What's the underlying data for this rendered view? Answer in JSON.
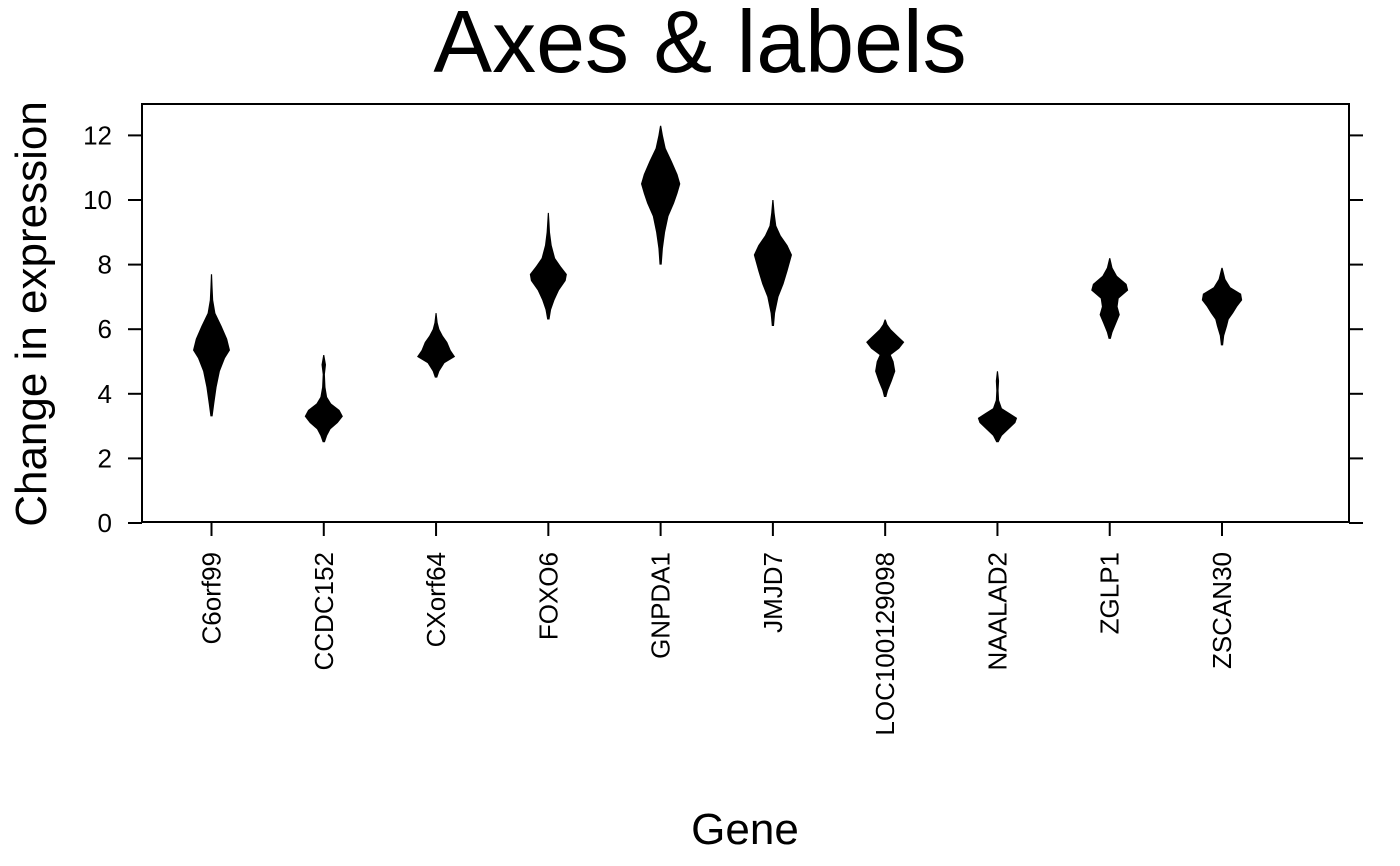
{
  "chart_data": {
    "type": "violin",
    "title": "Axes & labels",
    "xlabel": "Gene",
    "ylabel": "Change in expression",
    "ylim": [
      0,
      13
    ],
    "yticks": [
      0,
      2,
      4,
      6,
      8,
      10,
      12
    ],
    "y_tick_labels": [
      "0",
      "2",
      "4",
      "6",
      "8",
      "10",
      "12"
    ],
    "categories": [
      "C6orf99",
      "CCDC152",
      "CXorf64",
      "FOXO6",
      "GNPDA1",
      "JMJD7",
      "LOC100129098",
      "NAALAD2",
      "ZGLP1",
      "ZSCAN30"
    ],
    "color": "#000000",
    "grid": false,
    "violins": [
      {
        "name": "C6orf99",
        "min": 3.3,
        "max": 7.7,
        "profile": [
          [
            3.3,
            0.02
          ],
          [
            3.7,
            0.05
          ],
          [
            4.2,
            0.09
          ],
          [
            4.7,
            0.15
          ],
          [
            5.1,
            0.24
          ],
          [
            5.35,
            0.33
          ],
          [
            5.7,
            0.28
          ],
          [
            6.1,
            0.18
          ],
          [
            6.5,
            0.07
          ],
          [
            6.9,
            0.03
          ],
          [
            7.3,
            0.02
          ],
          [
            7.7,
            0.01
          ]
        ]
      },
      {
        "name": "CCDC152",
        "min": 2.5,
        "max": 5.2,
        "profile": [
          [
            2.5,
            0.02
          ],
          [
            2.7,
            0.06
          ],
          [
            2.9,
            0.12
          ],
          [
            3.1,
            0.25
          ],
          [
            3.3,
            0.34
          ],
          [
            3.5,
            0.28
          ],
          [
            3.7,
            0.13
          ],
          [
            3.9,
            0.06
          ],
          [
            4.2,
            0.03
          ],
          [
            4.6,
            0.02
          ],
          [
            4.9,
            0.04
          ],
          [
            5.2,
            0.01
          ]
        ]
      },
      {
        "name": "CXorf64",
        "min": 4.5,
        "max": 6.5,
        "profile": [
          [
            4.5,
            0.02
          ],
          [
            4.7,
            0.06
          ],
          [
            4.95,
            0.15
          ],
          [
            5.15,
            0.34
          ],
          [
            5.35,
            0.26
          ],
          [
            5.6,
            0.2
          ],
          [
            5.8,
            0.12
          ],
          [
            6.0,
            0.06
          ],
          [
            6.2,
            0.03
          ],
          [
            6.5,
            0.01
          ]
        ]
      },
      {
        "name": "FOXO6",
        "min": 6.3,
        "max": 9.6,
        "profile": [
          [
            6.3,
            0.02
          ],
          [
            6.6,
            0.05
          ],
          [
            6.9,
            0.11
          ],
          [
            7.2,
            0.19
          ],
          [
            7.5,
            0.31
          ],
          [
            7.7,
            0.33
          ],
          [
            7.95,
            0.22
          ],
          [
            8.2,
            0.12
          ],
          [
            8.6,
            0.06
          ],
          [
            9.0,
            0.03
          ],
          [
            9.3,
            0.02
          ],
          [
            9.6,
            0.01
          ]
        ]
      },
      {
        "name": "GNPDA1",
        "min": 8.0,
        "max": 12.3,
        "profile": [
          [
            8.0,
            0.02
          ],
          [
            8.5,
            0.04
          ],
          [
            9.0,
            0.08
          ],
          [
            9.5,
            0.14
          ],
          [
            9.9,
            0.24
          ],
          [
            10.2,
            0.3
          ],
          [
            10.5,
            0.35
          ],
          [
            10.8,
            0.3
          ],
          [
            11.2,
            0.2
          ],
          [
            11.6,
            0.09
          ],
          [
            12.0,
            0.04
          ],
          [
            12.3,
            0.01
          ]
        ]
      },
      {
        "name": "JMJD7",
        "min": 6.1,
        "max": 10.0,
        "profile": [
          [
            6.1,
            0.02
          ],
          [
            6.5,
            0.04
          ],
          [
            7.0,
            0.1
          ],
          [
            7.4,
            0.19
          ],
          [
            7.8,
            0.26
          ],
          [
            8.3,
            0.34
          ],
          [
            8.6,
            0.26
          ],
          [
            8.9,
            0.14
          ],
          [
            9.2,
            0.06
          ],
          [
            9.6,
            0.03
          ],
          [
            10.0,
            0.01
          ]
        ]
      },
      {
        "name": "LOC100129098",
        "min": 3.9,
        "max": 6.3,
        "profile": [
          [
            3.9,
            0.02
          ],
          [
            4.1,
            0.05
          ],
          [
            4.4,
            0.12
          ],
          [
            4.7,
            0.18
          ],
          [
            5.0,
            0.15
          ],
          [
            5.2,
            0.1
          ],
          [
            5.4,
            0.25
          ],
          [
            5.6,
            0.34
          ],
          [
            5.8,
            0.22
          ],
          [
            6.0,
            0.1
          ],
          [
            6.15,
            0.04
          ],
          [
            6.3,
            0.01
          ]
        ]
      },
      {
        "name": "NAALAD2",
        "min": 2.5,
        "max": 4.7,
        "profile": [
          [
            2.5,
            0.02
          ],
          [
            2.7,
            0.08
          ],
          [
            2.9,
            0.2
          ],
          [
            3.1,
            0.32
          ],
          [
            3.25,
            0.35
          ],
          [
            3.4,
            0.22
          ],
          [
            3.55,
            0.08
          ],
          [
            3.8,
            0.03
          ],
          [
            4.1,
            0.02
          ],
          [
            4.4,
            0.03
          ],
          [
            4.7,
            0.01
          ]
        ]
      },
      {
        "name": "ZGLP1",
        "min": 5.7,
        "max": 8.2,
        "profile": [
          [
            5.7,
            0.02
          ],
          [
            5.9,
            0.05
          ],
          [
            6.2,
            0.12
          ],
          [
            6.45,
            0.18
          ],
          [
            6.7,
            0.14
          ],
          [
            6.95,
            0.16
          ],
          [
            7.2,
            0.33
          ],
          [
            7.4,
            0.3
          ],
          [
            7.65,
            0.13
          ],
          [
            7.9,
            0.05
          ],
          [
            8.2,
            0.01
          ]
        ]
      },
      {
        "name": "ZSCAN30",
        "min": 5.5,
        "max": 7.9,
        "profile": [
          [
            5.5,
            0.02
          ],
          [
            5.8,
            0.04
          ],
          [
            6.1,
            0.09
          ],
          [
            6.3,
            0.12
          ],
          [
            6.5,
            0.2
          ],
          [
            6.7,
            0.27
          ],
          [
            6.9,
            0.36
          ],
          [
            7.1,
            0.34
          ],
          [
            7.3,
            0.15
          ],
          [
            7.55,
            0.06
          ],
          [
            7.9,
            0.01
          ]
        ]
      }
    ]
  }
}
